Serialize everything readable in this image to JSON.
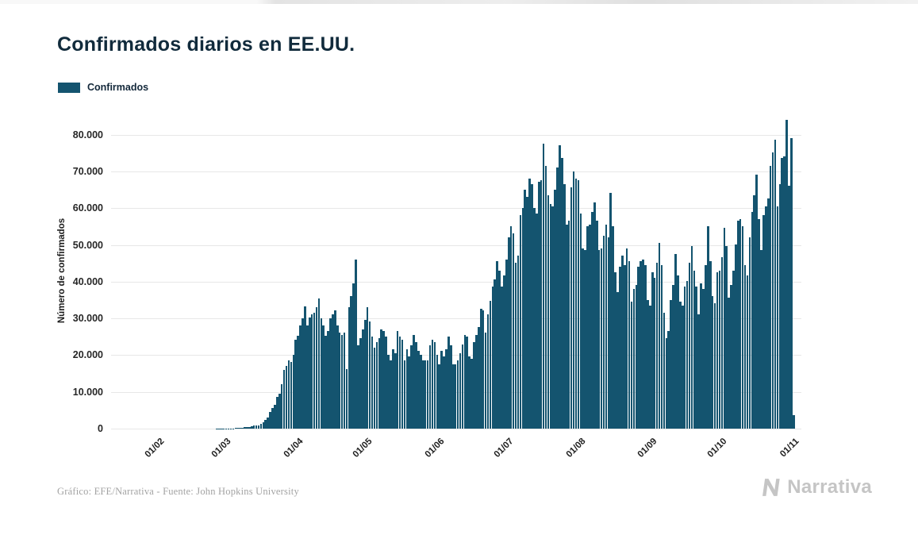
{
  "header": {
    "title": "Confirmados diarios en EE.UU."
  },
  "legend": {
    "label": "Confirmados",
    "swatch_color": "#14546F"
  },
  "footer": {
    "credit": "Gráfico: EFE/Narrativa - Fuente: John Hopkins University",
    "brand": "Narrativa"
  },
  "icons": {
    "brand_mark": "narrativa-n-icon"
  },
  "colors": {
    "bar": "#14546F",
    "title_text": "#112b3c",
    "grid": "#e7e7e7",
    "footer_text": "#a3a3a3",
    "brand_gray": "#c5c5c5"
  },
  "chart_data": {
    "type": "bar",
    "title": "Confirmados diarios en EE.UU.",
    "series_name": "Confirmados",
    "xlabel": "",
    "ylabel": "Número de confirmados",
    "x_unit": "day",
    "date_format": "dd/mm",
    "grid": "horizontal",
    "legend_position": "top-left",
    "bar_color": "#14546F",
    "ylim": [
      0,
      86000
    ],
    "y_ticks": [
      "0",
      "10.000",
      "20.000",
      "30.000",
      "40.000",
      "50.000",
      "60.000",
      "70.000",
      "80.000"
    ],
    "x_ticks": [
      {
        "label": "01/02",
        "index": 10
      },
      {
        "label": "01/03",
        "index": 39
      },
      {
        "label": "01/04",
        "index": 70
      },
      {
        "label": "01/05",
        "index": 100
      },
      {
        "label": "01/06",
        "index": 131
      },
      {
        "label": "01/07",
        "index": 161
      },
      {
        "label": "01/08",
        "index": 192
      },
      {
        "label": "01/09",
        "index": 223
      },
      {
        "label": "01/10",
        "index": 253
      },
      {
        "label": "01/11",
        "index": 284
      }
    ],
    "values": [
      1,
      0,
      1,
      0,
      2,
      1,
      1,
      2,
      1,
      2,
      2,
      1,
      2,
      2,
      2,
      3,
      2,
      3,
      3,
      3,
      4,
      4,
      3,
      3,
      4,
      4,
      5,
      6,
      5,
      6,
      7,
      9,
      11,
      14,
      16,
      19,
      22,
      26,
      32,
      38,
      48,
      70,
      85,
      115,
      155,
      205,
      270,
      350,
      430,
      510,
      620,
      800,
      950,
      920,
      1200,
      1700,
      2300,
      3000,
      4500,
      5600,
      6400,
      8600,
      9600,
      12000,
      16000,
      17000,
      18600,
      18100,
      20100,
      24200,
      25200,
      28100,
      30100,
      33300,
      28200,
      30200,
      31200,
      31600,
      33100,
      35500,
      30100,
      28100,
      25200,
      26600,
      30100,
      31100,
      32100,
      28100,
      26100,
      25600,
      26100,
      16200,
      33100,
      36100,
      39500,
      46000,
      22600,
      24600,
      27100,
      29600,
      33100,
      29100,
      25100,
      22100,
      23600,
      24600,
      27100,
      26600,
      25100,
      20100,
      18600,
      21600,
      20600,
      26600,
      25100,
      24100,
      18600,
      21600,
      19600,
      22600,
      25600,
      23600,
      21100,
      20100,
      18600,
      18600,
      18600,
      22600,
      24100,
      23600,
      20100,
      17600,
      21100,
      19600,
      21600,
      25100,
      22600,
      17600,
      17600,
      18600,
      20600,
      22800,
      25600,
      25100,
      19600,
      19100,
      23600,
      25600,
      27600,
      32600,
      32100,
      26100,
      31100,
      34700,
      38600,
      40600,
      45600,
      43100,
      38600,
      41600,
      46100,
      52100,
      55100,
      53100,
      45100,
      47100,
      58100,
      60100,
      65100,
      63100,
      68100,
      66600,
      60100,
      58600,
      67100,
      67600,
      77600,
      71600,
      63600,
      61100,
      60600,
      65100,
      71100,
      77100,
      73600,
      66600,
      55600,
      56600,
      65600,
      70100,
      68100,
      67600,
      58600,
      49100,
      48600,
      55100,
      55600,
      59100,
      61600,
      56600,
      48600,
      49100,
      52600,
      55600,
      52100,
      64100,
      55100,
      42600,
      37100,
      44100,
      47100,
      44600,
      49100,
      45600,
      34600,
      38100,
      39100,
      44100,
      45600,
      46100,
      44600,
      35100,
      33600,
      42600,
      41100,
      45100,
      50600,
      44600,
      31600,
      24600,
      26600,
      35100,
      39100,
      47600,
      41600,
      34600,
      33600,
      38600,
      40100,
      45100,
      49600,
      43100,
      38600,
      31100,
      39600,
      38100,
      44600,
      55100,
      45600,
      36100,
      34100,
      42600,
      43100,
      46600,
      54600,
      49600,
      35600,
      39100,
      43100,
      50100,
      56600,
      57100,
      55100,
      44600,
      41600,
      52100,
      59100,
      63600,
      69100,
      57100,
      48600,
      58100,
      60600,
      62600,
      71600,
      75100,
      78600,
      60600,
      66600,
      73600,
      74100,
      84100,
      66100,
      79100,
      3600
    ]
  }
}
